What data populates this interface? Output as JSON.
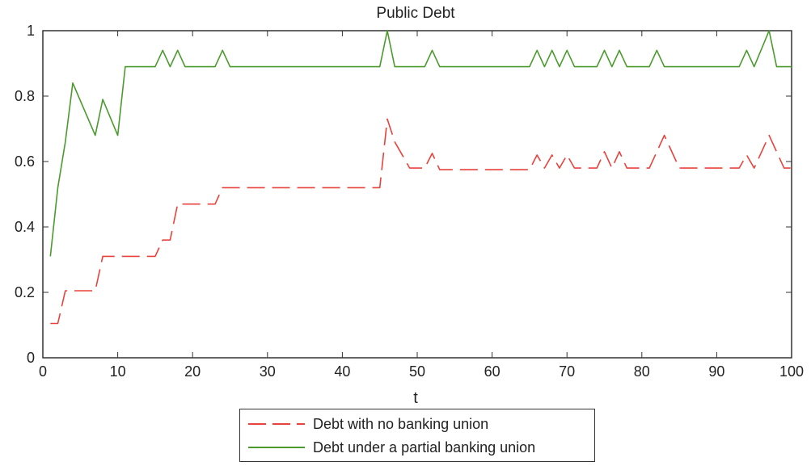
{
  "chart_data": {
    "type": "line",
    "title": "Public Debt",
    "xlabel": "t",
    "ylabel": "",
    "xlim": [
      0,
      100
    ],
    "ylim": [
      0,
      1
    ],
    "xticks": [
      0,
      10,
      20,
      30,
      40,
      50,
      60,
      70,
      80,
      90,
      100
    ],
    "yticks": [
      0,
      0.2,
      0.4,
      0.6,
      0.8,
      1
    ],
    "xtick_labels": [
      "0",
      "10",
      "20",
      "30",
      "40",
      "50",
      "60",
      "70",
      "80",
      "90",
      "100"
    ],
    "ytick_labels": [
      "0",
      "0.2",
      "0.4",
      "0.6",
      "0.8",
      "1"
    ],
    "grid": false,
    "legend_position": "bottom-center, outside",
    "series": [
      {
        "name": "Debt with no banking union",
        "color": "#e8423c",
        "style": "dashed",
        "x": [
          1,
          2,
          3,
          7,
          8,
          15,
          16,
          17,
          18,
          23,
          24,
          45,
          46,
          47,
          49,
          51,
          52,
          53,
          65,
          66,
          67,
          68,
          69,
          70,
          71,
          74,
          75,
          76,
          77,
          78,
          81,
          83,
          85,
          93,
          94,
          95,
          97,
          99,
          100
        ],
        "y": [
          0.105,
          0.105,
          0.205,
          0.205,
          0.31,
          0.31,
          0.36,
          0.36,
          0.47,
          0.47,
          0.52,
          0.52,
          0.73,
          0.66,
          0.58,
          0.58,
          0.625,
          0.575,
          0.575,
          0.62,
          0.58,
          0.62,
          0.58,
          0.62,
          0.58,
          0.58,
          0.63,
          0.58,
          0.63,
          0.58,
          0.58,
          0.68,
          0.58,
          0.58,
          0.62,
          0.58,
          0.68,
          0.58,
          0.58
        ]
      },
      {
        "name": "Debt under a partial banking union",
        "color": "#4a9a2e",
        "style": "solid",
        "x": [
          1,
          2,
          3,
          4,
          7,
          8,
          10,
          11,
          15,
          16,
          17,
          18,
          19,
          23,
          24,
          25,
          45,
          46,
          47,
          51,
          52,
          53,
          65,
          66,
          67,
          68,
          69,
          70,
          71,
          74,
          75,
          76,
          77,
          78,
          81,
          82,
          83,
          93,
          94,
          95,
          97,
          98,
          100
        ],
        "y": [
          0.31,
          0.52,
          0.66,
          0.84,
          0.68,
          0.79,
          0.68,
          0.89,
          0.89,
          0.94,
          0.89,
          0.94,
          0.89,
          0.89,
          0.94,
          0.89,
          0.89,
          1.0,
          0.89,
          0.89,
          0.94,
          0.89,
          0.89,
          0.94,
          0.89,
          0.94,
          0.89,
          0.94,
          0.89,
          0.89,
          0.94,
          0.89,
          0.94,
          0.89,
          0.89,
          0.94,
          0.89,
          0.89,
          0.94,
          0.89,
          1.0,
          0.89,
          0.89
        ]
      }
    ]
  }
}
